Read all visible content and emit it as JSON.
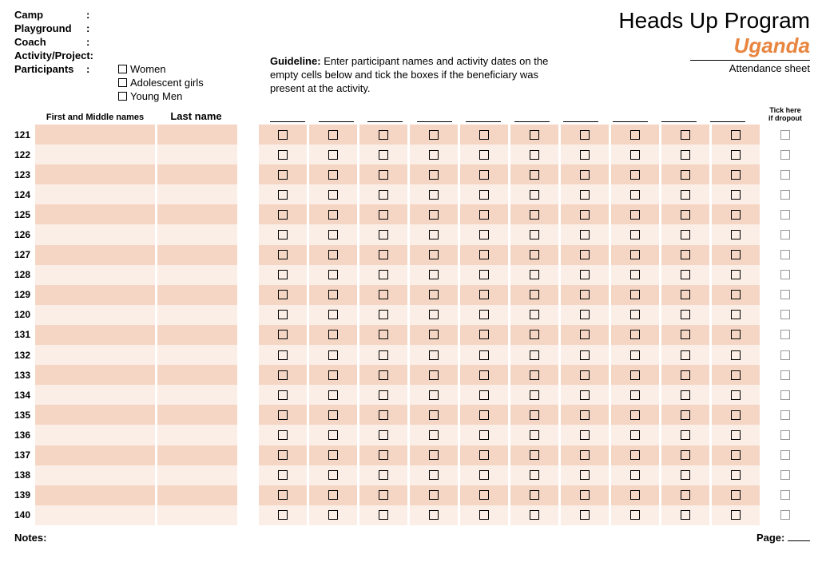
{
  "meta": {
    "camp": "Camp",
    "playground": "Playground",
    "coach": "Coach",
    "activity": "Activity/Project:",
    "participants": "Participants",
    "colon": ":"
  },
  "participant_options": [
    "Women",
    "Adolescent girls",
    "Young Men"
  ],
  "guideline_label": "Guideline:",
  "guideline_text": "Enter participant names and activity dates on the empty cells below and tick the boxes if the beneficiary was present at the activity.",
  "title": {
    "program": "Heads Up Program",
    "country": "Uganda",
    "subtitle": "Attendance sheet"
  },
  "columns": {
    "first": "First and Middle names",
    "last": "Last name",
    "dropout1": "Tick here",
    "dropout2": "if dropout"
  },
  "date_columns": 10,
  "row_numbers": [
    121,
    122,
    123,
    124,
    125,
    126,
    127,
    128,
    129,
    120,
    131,
    132,
    133,
    134,
    135,
    136,
    137,
    138,
    139,
    140
  ],
  "footer": {
    "notes": "Notes:",
    "page": "Page:"
  },
  "colors": {
    "odd": "#f5d6c4",
    "even": "#fbeee6",
    "accent": "#e8853f"
  }
}
